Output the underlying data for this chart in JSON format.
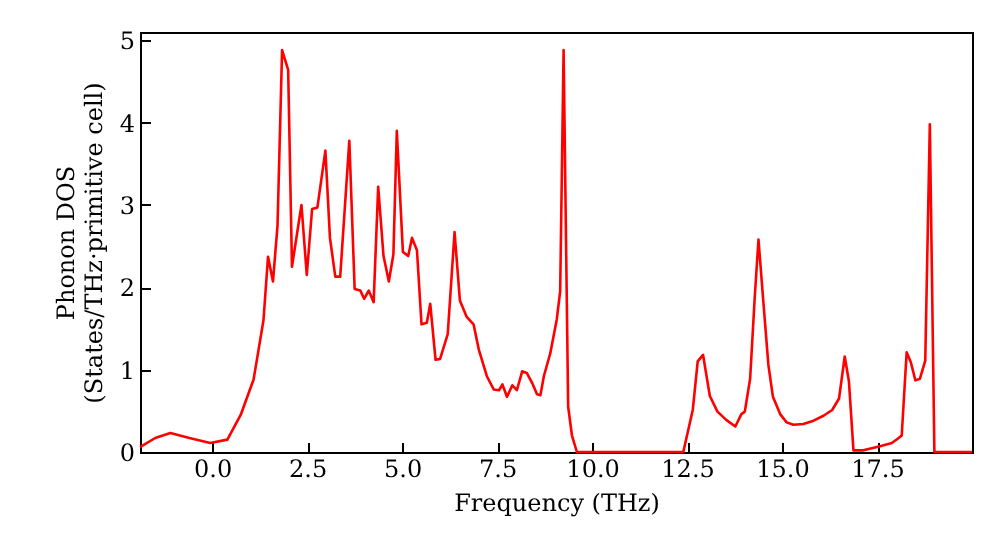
{
  "chart_data": {
    "type": "line",
    "xlabel": "Frequency (THz)",
    "ylabel": "Phonon DOS\n(States/THz·primitive cell)",
    "xlim": [
      -1.9,
      20
    ],
    "ylim": [
      0,
      5.1
    ],
    "xticks": [
      {
        "value": 0,
        "label": "0.0"
      },
      {
        "value": 2.5,
        "label": "2.5"
      },
      {
        "value": 5,
        "label": "5.0"
      },
      {
        "value": 7.5,
        "label": "7.5"
      },
      {
        "value": 10,
        "label": "10.0"
      },
      {
        "value": 12.5,
        "label": "12.5"
      },
      {
        "value": 15,
        "label": "15.0"
      },
      {
        "value": 17.5,
        "label": "17.5"
      }
    ],
    "yticks": [
      0,
      1,
      2,
      3,
      4,
      5
    ],
    "grid": false,
    "marker": "none",
    "line_style": "solid",
    "series": [
      {
        "color": "#ff0000",
        "x": [
          -1.9,
          -1.5,
          -1.1,
          -0.6,
          -0.05,
          0.4,
          0.75,
          1.09,
          1.35,
          1.47,
          1.6,
          1.72,
          1.84,
          2.0,
          2.1,
          2.35,
          2.49,
          2.63,
          2.77,
          2.98,
          3.1,
          3.24,
          3.37,
          3.61,
          3.75,
          3.9,
          4.0,
          4.12,
          4.25,
          4.37,
          4.51,
          4.65,
          4.77,
          4.86,
          5.02,
          5.16,
          5.26,
          5.39,
          5.51,
          5.65,
          5.74,
          5.88,
          6.0,
          6.2,
          6.38,
          6.52,
          6.7,
          6.88,
          7.02,
          7.23,
          7.41,
          7.55,
          7.64,
          7.76,
          7.9,
          8.02,
          8.16,
          8.28,
          8.42,
          8.55,
          8.64,
          8.73,
          8.9,
          9.07,
          9.16,
          9.25,
          9.37,
          9.47,
          9.6,
          12.4,
          12.65,
          12.78,
          12.92,
          13.1,
          13.3,
          13.53,
          13.77,
          13.93,
          14.02,
          14.16,
          14.28,
          14.38,
          14.5,
          14.64,
          14.76,
          14.95,
          15.12,
          15.3,
          15.56,
          15.83,
          16.09,
          16.32,
          16.5,
          16.65,
          16.76,
          16.88,
          17.14,
          17.58,
          17.89,
          18.07,
          18.15,
          18.28,
          18.39,
          18.51,
          18.63,
          18.77,
          18.89,
          19.01,
          20
        ],
        "values": [
          0.06,
          0.17,
          0.23,
          0.17,
          0.11,
          0.15,
          0.45,
          0.88,
          1.6,
          2.37,
          2.07,
          2.75,
          4.88,
          4.64,
          2.25,
          3.0,
          2.15,
          2.95,
          2.97,
          3.66,
          2.6,
          2.13,
          2.13,
          3.78,
          1.98,
          1.96,
          1.86,
          1.96,
          1.82,
          3.22,
          2.38,
          2.07,
          2.4,
          3.9,
          2.43,
          2.38,
          2.6,
          2.45,
          1.55,
          1.57,
          1.8,
          1.12,
          1.13,
          1.43,
          2.67,
          1.84,
          1.64,
          1.55,
          1.24,
          0.92,
          0.76,
          0.75,
          0.82,
          0.67,
          0.81,
          0.75,
          0.98,
          0.96,
          0.84,
          0.7,
          0.69,
          0.92,
          1.2,
          1.61,
          1.95,
          4.88,
          0.55,
          0.2,
          0,
          0,
          0.51,
          1.1,
          1.18,
          0.68,
          0.49,
          0.39,
          0.31,
          0.46,
          0.49,
          0.89,
          1.87,
          2.58,
          1.87,
          1.06,
          0.67,
          0.46,
          0.36,
          0.33,
          0.34,
          0.38,
          0.44,
          0.51,
          0.65,
          1.16,
          0.86,
          0.02,
          0.02,
          0.07,
          0.11,
          0.17,
          0.2,
          1.21,
          1.09,
          0.87,
          0.89,
          1.11,
          3.98,
          0,
          0
        ]
      }
    ]
  }
}
